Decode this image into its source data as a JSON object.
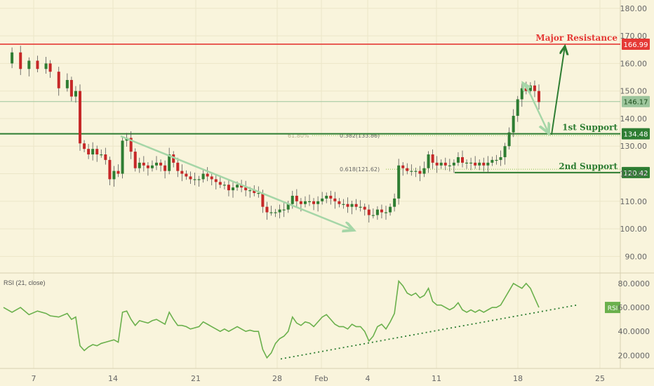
{
  "colors": {
    "background": "#f9f4dc",
    "grid": "#ece6c8",
    "candle_up": "#2e7d32",
    "candle_down": "#c62828",
    "resistance": "#e53935",
    "support": "#2e7d32",
    "price_line": "#9cc59c",
    "rsi_line": "#6ab04c",
    "arrow_light": "#a5d6a7",
    "fib_line": "#8bc34a",
    "axis_text": "#666666"
  },
  "chart_data": [
    {
      "type": "candlestick",
      "yticks": [
        "180.00",
        "170.00",
        "160.00",
        "150.00",
        "140.00",
        "130.00",
        "120.00",
        "110.00",
        "100.00",
        "90.00"
      ],
      "ylim": [
        85,
        182
      ],
      "xticks": [
        "7",
        "14",
        "21",
        "28",
        "Feb",
        "4",
        "11",
        "18",
        "25"
      ],
      "price_path": [
        [
          0,
          160
        ],
        [
          2,
          164
        ],
        [
          4,
          158
        ],
        [
          6,
          161
        ],
        [
          8,
          158
        ],
        [
          10,
          160
        ],
        [
          11,
          157
        ],
        [
          13,
          151
        ],
        [
          15,
          154
        ],
        [
          16,
          148
        ],
        [
          17,
          150
        ],
        [
          18,
          131
        ],
        [
          19,
          129
        ],
        [
          20,
          127
        ],
        [
          21,
          129
        ],
        [
          22,
          127
        ],
        [
          23,
          127
        ],
        [
          24,
          125
        ],
        [
          25,
          118
        ],
        [
          26,
          121
        ],
        [
          27,
          120
        ],
        [
          28,
          132
        ],
        [
          29,
          133
        ],
        [
          30,
          128
        ],
        [
          31,
          122
        ],
        [
          32,
          124
        ],
        [
          33,
          123
        ],
        [
          34,
          122
        ],
        [
          35,
          123
        ],
        [
          36,
          124
        ],
        [
          37,
          123
        ],
        [
          38,
          121
        ],
        [
          39,
          127
        ],
        [
          40,
          124
        ],
        [
          41,
          121
        ],
        [
          42,
          120
        ],
        [
          43,
          119
        ],
        [
          44,
          118
        ],
        [
          45,
          118
        ],
        [
          46,
          118
        ],
        [
          47,
          120
        ],
        [
          48,
          119
        ],
        [
          49,
          118
        ],
        [
          50,
          117
        ],
        [
          51,
          116
        ],
        [
          52,
          116
        ],
        [
          53,
          114
        ],
        [
          54,
          115
        ],
        [
          55,
          116
        ],
        [
          56,
          115
        ],
        [
          57,
          114
        ],
        [
          58,
          114
        ],
        [
          59,
          113
        ],
        [
          60,
          113
        ],
        [
          61,
          108
        ],
        [
          62,
          106
        ],
        [
          63,
          106
        ],
        [
          64,
          106
        ],
        [
          65,
          107
        ],
        [
          66,
          107
        ],
        [
          67,
          109
        ],
        [
          68,
          112
        ],
        [
          69,
          110
        ],
        [
          70,
          109
        ],
        [
          71,
          110
        ],
        [
          72,
          110
        ],
        [
          73,
          109
        ],
        [
          74,
          110
        ],
        [
          75,
          111
        ],
        [
          76,
          112
        ],
        [
          77,
          111
        ],
        [
          78,
          110
        ],
        [
          79,
          109
        ],
        [
          80,
          109
        ],
        [
          81,
          108
        ],
        [
          82,
          109
        ],
        [
          83,
          108
        ],
        [
          84,
          108
        ],
        [
          85,
          107
        ],
        [
          86,
          105
        ],
        [
          87,
          105
        ],
        [
          88,
          107
        ],
        [
          89,
          106
        ],
        [
          90,
          106
        ],
        [
          91,
          108
        ],
        [
          92,
          111
        ],
        [
          93,
          123
        ],
        [
          94,
          122
        ],
        [
          95,
          121
        ],
        [
          96,
          121
        ],
        [
          97,
          121
        ],
        [
          98,
          120
        ],
        [
          99,
          122
        ],
        [
          100,
          127
        ],
        [
          101,
          124
        ],
        [
          102,
          123
        ],
        [
          103,
          124
        ],
        [
          104,
          123
        ],
        [
          105,
          123
        ],
        [
          106,
          124
        ],
        [
          107,
          126
        ],
        [
          108,
          124
        ],
        [
          109,
          124
        ],
        [
          110,
          124
        ],
        [
          111,
          123
        ],
        [
          112,
          124
        ],
        [
          113,
          123
        ],
        [
          114,
          124
        ],
        [
          115,
          125
        ],
        [
          116,
          125
        ],
        [
          117,
          126
        ],
        [
          118,
          130
        ],
        [
          119,
          135
        ],
        [
          120,
          141
        ],
        [
          121,
          147
        ],
        [
          122,
          151
        ],
        [
          123,
          150
        ],
        [
          124,
          152
        ],
        [
          125,
          150
        ],
        [
          126,
          146
        ]
      ],
      "last_price": "146.17",
      "levels": [
        {
          "name": "major-resistance",
          "price": 166.99,
          "label": "Major Resistance",
          "value": "166.99"
        },
        {
          "name": "first-support",
          "price": 134.48,
          "label": "1st Support",
          "value": "134.48"
        },
        {
          "name": "second-support",
          "price": 120.42,
          "label": "2nd Support",
          "value": "120.42"
        }
      ],
      "fib_labels": [
        {
          "text": "61.80%",
          "price": 133.86
        },
        {
          "text": "0.382(133.86)",
          "price": 133.86
        },
        {
          "text": "0.618(121.62)",
          "price": 121.62
        }
      ]
    },
    {
      "type": "line",
      "title": "RSI (21, close)",
      "yticks": [
        "80.0000",
        "60.0000",
        "40.0000",
        "20.0000"
      ],
      "ylim": [
        12,
        87
      ],
      "badge": "RSI",
      "rsi_path": [
        [
          0,
          60
        ],
        [
          2,
          56
        ],
        [
          4,
          60
        ],
        [
          6,
          54
        ],
        [
          8,
          57
        ],
        [
          10,
          55
        ],
        [
          11,
          53
        ],
        [
          13,
          52
        ],
        [
          15,
          55
        ],
        [
          16,
          50
        ],
        [
          17,
          52
        ],
        [
          18,
          28
        ],
        [
          19,
          24
        ],
        [
          20,
          27
        ],
        [
          21,
          29
        ],
        [
          22,
          28
        ],
        [
          23,
          30
        ],
        [
          24,
          31
        ],
        [
          25,
          32
        ],
        [
          26,
          33
        ],
        [
          27,
          31
        ],
        [
          28,
          56
        ],
        [
          29,
          57
        ],
        [
          30,
          50
        ],
        [
          31,
          45
        ],
        [
          32,
          49
        ],
        [
          33,
          48
        ],
        [
          34,
          47
        ],
        [
          35,
          49
        ],
        [
          36,
          50
        ],
        [
          37,
          48
        ],
        [
          38,
          46
        ],
        [
          39,
          56
        ],
        [
          40,
          50
        ],
        [
          41,
          45
        ],
        [
          42,
          45
        ],
        [
          43,
          44
        ],
        [
          44,
          42
        ],
        [
          45,
          43
        ],
        [
          46,
          44
        ],
        [
          47,
          48
        ],
        [
          48,
          46
        ],
        [
          49,
          44
        ],
        [
          50,
          42
        ],
        [
          51,
          40
        ],
        [
          52,
          42
        ],
        [
          53,
          40
        ],
        [
          54,
          42
        ],
        [
          55,
          44
        ],
        [
          56,
          42
        ],
        [
          57,
          40
        ],
        [
          58,
          41
        ],
        [
          59,
          40
        ],
        [
          60,
          40
        ],
        [
          61,
          25
        ],
        [
          62,
          18
        ],
        [
          63,
          22
        ],
        [
          64,
          30
        ],
        [
          65,
          34
        ],
        [
          66,
          36
        ],
        [
          67,
          40
        ],
        [
          68,
          52
        ],
        [
          69,
          47
        ],
        [
          70,
          45
        ],
        [
          71,
          48
        ],
        [
          72,
          47
        ],
        [
          73,
          44
        ],
        [
          74,
          48
        ],
        [
          75,
          52
        ],
        [
          76,
          54
        ],
        [
          77,
          50
        ],
        [
          78,
          46
        ],
        [
          79,
          44
        ],
        [
          80,
          44
        ],
        [
          81,
          42
        ],
        [
          82,
          46
        ],
        [
          83,
          44
        ],
        [
          84,
          44
        ],
        [
          85,
          40
        ],
        [
          86,
          32
        ],
        [
          87,
          36
        ],
        [
          88,
          44
        ],
        [
          89,
          46
        ],
        [
          90,
          42
        ],
        [
          91,
          48
        ],
        [
          92,
          55
        ],
        [
          93,
          82
        ],
        [
          94,
          78
        ],
        [
          95,
          72
        ],
        [
          96,
          70
        ],
        [
          97,
          72
        ],
        [
          98,
          68
        ],
        [
          99,
          70
        ],
        [
          100,
          76
        ],
        [
          101,
          65
        ],
        [
          102,
          62
        ],
        [
          103,
          62
        ],
        [
          104,
          60
        ],
        [
          105,
          58
        ],
        [
          106,
          60
        ],
        [
          107,
          64
        ],
        [
          108,
          58
        ],
        [
          109,
          56
        ],
        [
          110,
          58
        ],
        [
          111,
          56
        ],
        [
          112,
          58
        ],
        [
          113,
          56
        ],
        [
          114,
          58
        ],
        [
          115,
          60
        ],
        [
          116,
          60
        ],
        [
          117,
          62
        ],
        [
          118,
          68
        ],
        [
          119,
          74
        ],
        [
          120,
          80
        ],
        [
          121,
          78
        ],
        [
          122,
          76
        ],
        [
          123,
          80
        ],
        [
          124,
          76
        ],
        [
          125,
          68
        ],
        [
          126,
          60
        ]
      ]
    }
  ]
}
